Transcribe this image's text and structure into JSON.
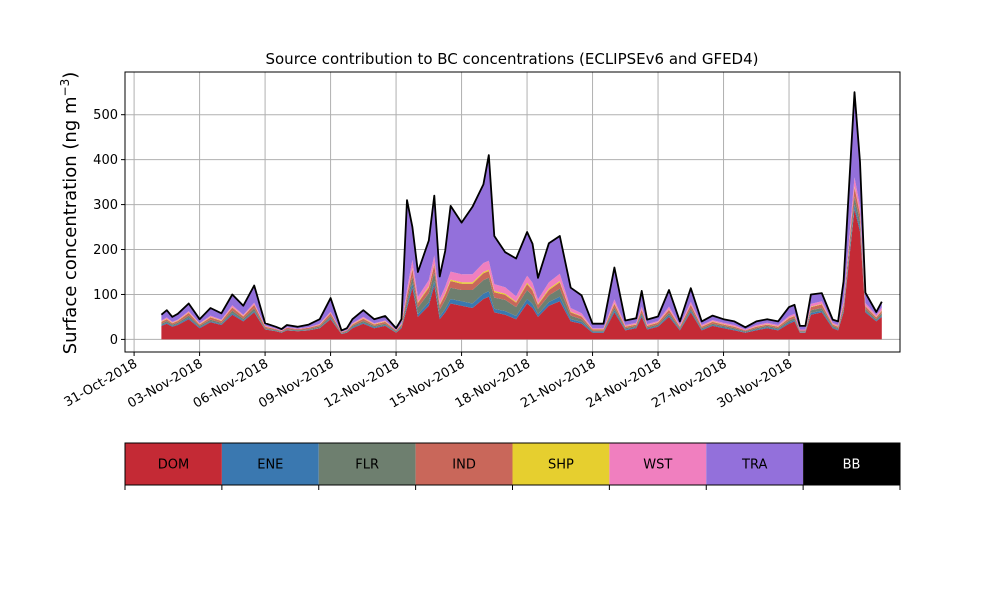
{
  "chart_data": {
    "type": "area",
    "title": "Source contribution to BC concentrations (ECLIPSEv6 and GFED4)",
    "ylabel": "Surface concentration (ng m",
    "ylabel_sup": "−3",
    "ylabel_close": ")",
    "xlabel": "",
    "stacked": true,
    "ylim": [
      -28,
      595
    ],
    "xlim": [
      "2018-10-30T14:00",
      "2018-12-05T02:00"
    ],
    "yticks": [
      0,
      100,
      200,
      300,
      400,
      500
    ],
    "xticks": [
      "31-Oct-2018",
      "03-Nov-2018",
      "06-Nov-2018",
      "09-Nov-2018",
      "12-Nov-2018",
      "15-Nov-2018",
      "18-Nov-2018",
      "21-Nov-2018",
      "24-Nov-2018",
      "27-Nov-2018",
      "30-Nov-2018"
    ],
    "grid": true,
    "total_outline": {
      "name": "BB",
      "color": "#000000"
    },
    "x": [
      "01-Nov-2018 06:00",
      "01-Nov-2018 12:00",
      "01-Nov-2018 18:00",
      "02-Nov-2018 00:00",
      "02-Nov-2018 12:00",
      "03-Nov-2018 00:00",
      "03-Nov-2018 12:00",
      "04-Nov-2018 00:00",
      "04-Nov-2018 12:00",
      "05-Nov-2018 00:00",
      "05-Nov-2018 12:00",
      "06-Nov-2018 00:00",
      "06-Nov-2018 12:00",
      "06-Nov-2018 18:00",
      "07-Nov-2018 00:00",
      "07-Nov-2018 12:00",
      "08-Nov-2018 00:00",
      "08-Nov-2018 12:00",
      "09-Nov-2018 00:00",
      "09-Nov-2018 12:00",
      "09-Nov-2018 18:00",
      "10-Nov-2018 00:00",
      "10-Nov-2018 12:00",
      "11-Nov-2018 00:00",
      "11-Nov-2018 12:00",
      "12-Nov-2018 00:00",
      "12-Nov-2018 06:00",
      "12-Nov-2018 12:00",
      "12-Nov-2018 18:00",
      "13-Nov-2018 00:00",
      "13-Nov-2018 12:00",
      "13-Nov-2018 18:00",
      "14-Nov-2018 00:00",
      "14-Nov-2018 06:00",
      "14-Nov-2018 12:00",
      "15-Nov-2018 00:00",
      "15-Nov-2018 12:00",
      "16-Nov-2018 00:00",
      "16-Nov-2018 06:00",
      "16-Nov-2018 12:00",
      "17-Nov-2018 00:00",
      "17-Nov-2018 12:00",
      "18-Nov-2018 00:00",
      "18-Nov-2018 06:00",
      "18-Nov-2018 12:00",
      "19-Nov-2018 00:00",
      "19-Nov-2018 12:00",
      "20-Nov-2018 00:00",
      "20-Nov-2018 12:00",
      "21-Nov-2018 00:00",
      "21-Nov-2018 12:00",
      "22-Nov-2018 00:00",
      "22-Nov-2018 12:00",
      "23-Nov-2018 00:00",
      "23-Nov-2018 06:00",
      "23-Nov-2018 12:00",
      "24-Nov-2018 00:00",
      "24-Nov-2018 12:00",
      "25-Nov-2018 00:00",
      "25-Nov-2018 12:00",
      "26-Nov-2018 00:00",
      "26-Nov-2018 12:00",
      "27-Nov-2018 00:00",
      "27-Nov-2018 12:00",
      "28-Nov-2018 00:00",
      "28-Nov-2018 12:00",
      "29-Nov-2018 00:00",
      "29-Nov-2018 12:00",
      "30-Nov-2018 00:00",
      "30-Nov-2018 06:00",
      "30-Nov-2018 12:00",
      "30-Nov-2018 18:00",
      "01-Dec-2018 00:00",
      "01-Dec-2018 12:00",
      "02-Dec-2018 00:00",
      "02-Dec-2018 06:00",
      "02-Dec-2018 12:00",
      "03-Dec-2018 00:00",
      "03-Dec-2018 06:00",
      "03-Dec-2018 12:00",
      "04-Dec-2018 00:00",
      "04-Dec-2018 06:00"
    ],
    "series": [
      {
        "name": "DOM",
        "color": "#c42a35",
        "values": [
          30,
          35,
          28,
          32,
          45,
          25,
          38,
          32,
          55,
          40,
          60,
          22,
          18,
          15,
          20,
          18,
          20,
          25,
          45,
          12,
          15,
          25,
          35,
          25,
          30,
          15,
          25,
          70,
          115,
          50,
          75,
          120,
          45,
          60,
          80,
          75,
          70,
          90,
          95,
          60,
          55,
          45,
          80,
          70,
          50,
          75,
          85,
          40,
          35,
          15,
          15,
          60,
          20,
          25,
          50,
          22,
          28,
          50,
          20,
          60,
          20,
          30,
          25,
          20,
          15,
          20,
          25,
          20,
          35,
          40,
          15,
          15,
          55,
          60,
          25,
          20,
          60,
          290,
          240,
          60,
          40,
          50
        ]
      },
      {
        "name": "ENE",
        "color": "#3a78b0",
        "values": [
          2,
          2,
          2,
          2,
          3,
          2,
          2,
          2,
          3,
          2,
          3,
          1,
          1,
          1,
          1,
          1,
          1,
          1,
          2,
          1,
          1,
          2,
          2,
          2,
          2,
          1,
          2,
          6,
          10,
          6,
          8,
          10,
          6,
          8,
          10,
          10,
          10,
          12,
          12,
          8,
          8,
          7,
          10,
          9,
          6,
          8,
          10,
          5,
          4,
          2,
          2,
          5,
          2,
          2,
          4,
          2,
          2,
          4,
          2,
          4,
          2,
          2,
          2,
          2,
          1,
          2,
          2,
          2,
          3,
          3,
          1,
          1,
          4,
          4,
          2,
          2,
          4,
          10,
          8,
          3,
          2,
          3
        ]
      },
      {
        "name": "FLR",
        "color": "#6e7f6f",
        "values": [
          3,
          4,
          3,
          3,
          5,
          3,
          4,
          3,
          6,
          4,
          6,
          2,
          2,
          1,
          2,
          2,
          2,
          3,
          5,
          1,
          2,
          3,
          4,
          3,
          3,
          2,
          3,
          10,
          15,
          15,
          20,
          20,
          15,
          20,
          25,
          25,
          30,
          30,
          30,
          25,
          25,
          20,
          20,
          18,
          12,
          15,
          18,
          8,
          6,
          2,
          2,
          6,
          3,
          3,
          5,
          3,
          3,
          5,
          3,
          5,
          3,
          3,
          3,
          3,
          2,
          3,
          3,
          3,
          4,
          4,
          2,
          2,
          6,
          6,
          3,
          3,
          6,
          18,
          15,
          5,
          3,
          5
        ]
      },
      {
        "name": "IND",
        "color": "#c9675a",
        "values": [
          4,
          4,
          3,
          4,
          6,
          3,
          5,
          4,
          7,
          5,
          8,
          3,
          2,
          2,
          3,
          2,
          3,
          3,
          6,
          2,
          2,
          3,
          5,
          3,
          4,
          2,
          3,
          12,
          16,
          10,
          12,
          16,
          10,
          12,
          15,
          14,
          14,
          15,
          15,
          12,
          11,
          10,
          13,
          12,
          9,
          12,
          14,
          7,
          6,
          3,
          3,
          8,
          3,
          3,
          7,
          3,
          4,
          7,
          3,
          8,
          3,
          4,
          3,
          3,
          2,
          3,
          3,
          3,
          5,
          5,
          2,
          2,
          7,
          8,
          3,
          3,
          8,
          20,
          16,
          6,
          4,
          6
        ]
      },
      {
        "name": "SHP",
        "color": "#e6cf2f",
        "values": [
          1,
          1,
          1,
          1,
          1,
          1,
          1,
          1,
          1,
          1,
          1,
          1,
          0,
          0,
          0,
          0,
          0,
          1,
          1,
          0,
          0,
          1,
          1,
          1,
          1,
          0,
          1,
          2,
          3,
          2,
          3,
          3,
          2,
          3,
          3,
          3,
          3,
          3,
          3,
          3,
          3,
          2,
          3,
          3,
          2,
          3,
          3,
          2,
          1,
          1,
          1,
          2,
          1,
          1,
          1,
          1,
          1,
          1,
          1,
          1,
          1,
          1,
          1,
          1,
          0,
          1,
          1,
          1,
          1,
          1,
          0,
          0,
          1,
          1,
          1,
          1,
          1,
          3,
          2,
          1,
          1,
          1
        ]
      },
      {
        "name": "WST",
        "color": "#f07fbf",
        "values": [
          2,
          3,
          2,
          2,
          3,
          2,
          3,
          2,
          4,
          3,
          4,
          2,
          1,
          1,
          1,
          1,
          1,
          2,
          3,
          1,
          1,
          2,
          3,
          2,
          2,
          1,
          2,
          12,
          18,
          12,
          14,
          18,
          12,
          14,
          18,
          18,
          18,
          20,
          20,
          15,
          14,
          12,
          16,
          14,
          10,
          14,
          16,
          8,
          6,
          2,
          2,
          8,
          3,
          3,
          6,
          3,
          3,
          6,
          3,
          6,
          3,
          3,
          3,
          3,
          2,
          3,
          3,
          3,
          4,
          4,
          2,
          2,
          6,
          6,
          3,
          3,
          6,
          20,
          16,
          6,
          4,
          6
        ]
      },
      {
        "name": "TRA",
        "color": "#9370db",
        "values": [
          13,
          16,
          11,
          13,
          17,
          9,
          17,
          14,
          24,
          20,
          38,
          5,
          4,
          3,
          5,
          4,
          6,
          10,
          30,
          3,
          4,
          9,
          15,
          9,
          10,
          4,
          9,
          198,
          73,
          55,
          88,
          133,
          50,
          80,
          146,
          115,
          150,
          175,
          235,
          107,
          78,
          84,
          97,
          87,
          48,
          87,
          84,
          45,
          40,
          10,
          10,
          71,
          10,
          10,
          35,
          10,
          10,
          37,
          8,
          30,
          8,
          10,
          8,
          8,
          5,
          8,
          8,
          8,
          20,
          20,
          8,
          8,
          21,
          18,
          7,
          8,
          45,
          189,
          98,
          23,
          7,
          13
        ]
      },
      {
        "name": "BB",
        "color": "#000000",
        "values": [
          0,
          0,
          0,
          0,
          0,
          0,
          0,
          0,
          0,
          0,
          0,
          0,
          0,
          0,
          0,
          0,
          0,
          0,
          0,
          0,
          0,
          0,
          0,
          0,
          0,
          0,
          0,
          0,
          0,
          0,
          0,
          0,
          0,
          0,
          0,
          0,
          0,
          0,
          0,
          0,
          0,
          0,
          0,
          0,
          0,
          0,
          0,
          0,
          0,
          0,
          0,
          0,
          0,
          0,
          0,
          0,
          0,
          0,
          0,
          0,
          0,
          0,
          0,
          0,
          0,
          0,
          0,
          0,
          0,
          0,
          0,
          0,
          0,
          0,
          0,
          0,
          0,
          0,
          0,
          0,
          0,
          0
        ]
      }
    ],
    "legend": {
      "placement": "bottom",
      "entries": [
        {
          "label": "DOM",
          "color": "#c42a35",
          "text_color": "#000000"
        },
        {
          "label": "ENE",
          "color": "#3a78b0",
          "text_color": "#000000"
        },
        {
          "label": "FLR",
          "color": "#6e7f6f",
          "text_color": "#000000"
        },
        {
          "label": "IND",
          "color": "#c9675a",
          "text_color": "#000000"
        },
        {
          "label": "SHP",
          "color": "#e6cf2f",
          "text_color": "#000000"
        },
        {
          "label": "WST",
          "color": "#f07fbf",
          "text_color": "#000000"
        },
        {
          "label": "TRA",
          "color": "#9370db",
          "text_color": "#000000"
        },
        {
          "label": "BB",
          "color": "#000000",
          "text_color": "#ffffff"
        }
      ]
    }
  }
}
